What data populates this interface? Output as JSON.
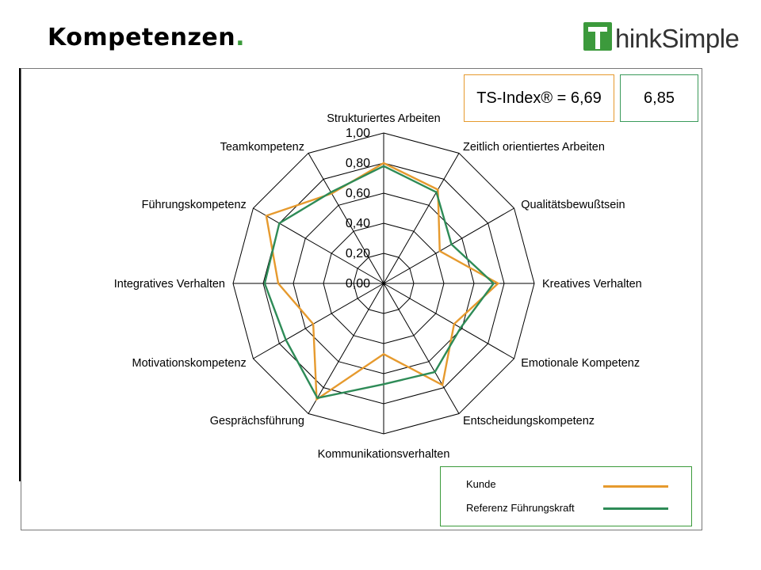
{
  "header": {
    "title": "Kompetenzen",
    "title_dot": "."
  },
  "logo": {
    "text": "hinkSimple",
    "mark_letter": "T",
    "brand_color": "#3c9a3c"
  },
  "index_boxes": {
    "kunde": "TS-Index® = 6,69",
    "referenz": "6,85"
  },
  "legend": {
    "items": [
      {
        "label": "Kunde",
        "color": "#e69a2e"
      },
      {
        "label": "Referenz Führungskraft",
        "color": "#2e8b57"
      }
    ]
  },
  "chart_data": {
    "type": "radar",
    "categories": [
      "Strukturiertes Arbeiten",
      "Zeitlich orientiertes Arbeiten",
      "Qualitätsbewußtsein",
      "Kreatives Verhalten",
      "Emotionale Kompetenz",
      "Entscheidungskompetenz",
      "Kommunikationsverhalten",
      "Gesprächsführung",
      "Motivationskompetenz",
      "Integratives Verhalten",
      "Führungskompetenz",
      "Teamkompetenz"
    ],
    "axis_ticks": [
      "0,00",
      "0,20",
      "0,40",
      "0,60",
      "0,80",
      "1,00"
    ],
    "rmin": 0,
    "rmax": 1,
    "series": [
      {
        "name": "Kunde",
        "color": "#e69a2e",
        "values": [
          0.8,
          0.72,
          0.43,
          0.76,
          0.54,
          0.78,
          0.47,
          0.89,
          0.54,
          0.7,
          0.9,
          0.69
        ]
      },
      {
        "name": "Referenz Führungskraft",
        "color": "#2e8b57",
        "values": [
          0.78,
          0.7,
          0.52,
          0.73,
          0.59,
          0.68,
          0.67,
          0.88,
          0.75,
          0.79,
          0.8,
          0.7
        ]
      }
    ]
  }
}
